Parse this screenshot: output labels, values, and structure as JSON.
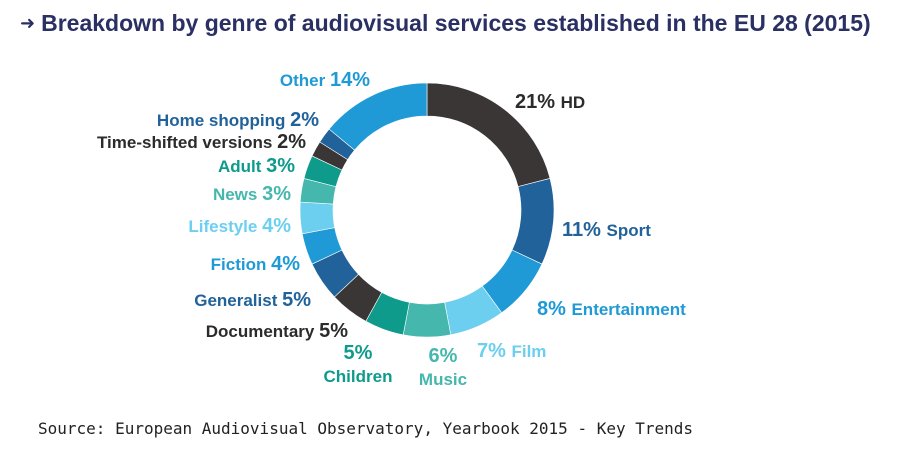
{
  "title": "Breakdown by genre of audiovisual services established in the EU 28 (2015)",
  "title_arrow": "➜",
  "source": "Source: European Audiovisual Observatory, Yearbook 2015 - Key Trends",
  "chart_data": {
    "type": "pie",
    "subtype": "donut",
    "title": "Breakdown by genre of audiovisual services established in the EU 28 (2015)",
    "unit": "%",
    "slices": [
      {
        "label": "HD",
        "value": 21,
        "pct_text": "21%",
        "color": "#3a3636"
      },
      {
        "label": "Sport",
        "value": 11,
        "pct_text": "11%",
        "color": "#21629a"
      },
      {
        "label": "Entertainment",
        "value": 8,
        "pct_text": "8%",
        "color": "#1f9ad6"
      },
      {
        "label": "Film",
        "value": 7,
        "pct_text": "7%",
        "color": "#6ccff0"
      },
      {
        "label": "Music",
        "value": 6,
        "pct_text": "6%",
        "color": "#45b7ad"
      },
      {
        "label": "Children",
        "value": 5,
        "pct_text": "5%",
        "color": "#0e9b8c"
      },
      {
        "label": "Documentary",
        "value": 5,
        "pct_text": "5%",
        "color": "#3a3636"
      },
      {
        "label": "Generalist",
        "value": 5,
        "pct_text": "5%",
        "color": "#21629a"
      },
      {
        "label": "Fiction",
        "value": 4,
        "pct_text": "4%",
        "color": "#1f9ad6"
      },
      {
        "label": "Lifestyle",
        "value": 4,
        "pct_text": "4%",
        "color": "#6ccff0"
      },
      {
        "label": "News",
        "value": 3,
        "pct_text": "3%",
        "color": "#45b7ad"
      },
      {
        "label": "Adult",
        "value": 3,
        "pct_text": "3%",
        "color": "#0e9b8c"
      },
      {
        "label": "Time-shifted versions",
        "value": 2,
        "pct_text": "2%",
        "color": "#3a3636"
      },
      {
        "label": "Home shopping",
        "value": 2,
        "pct_text": "2%",
        "color": "#21629a"
      },
      {
        "label": "Other",
        "value": 14,
        "pct_text": "14%",
        "color": "#1f9ad6"
      }
    ]
  }
}
